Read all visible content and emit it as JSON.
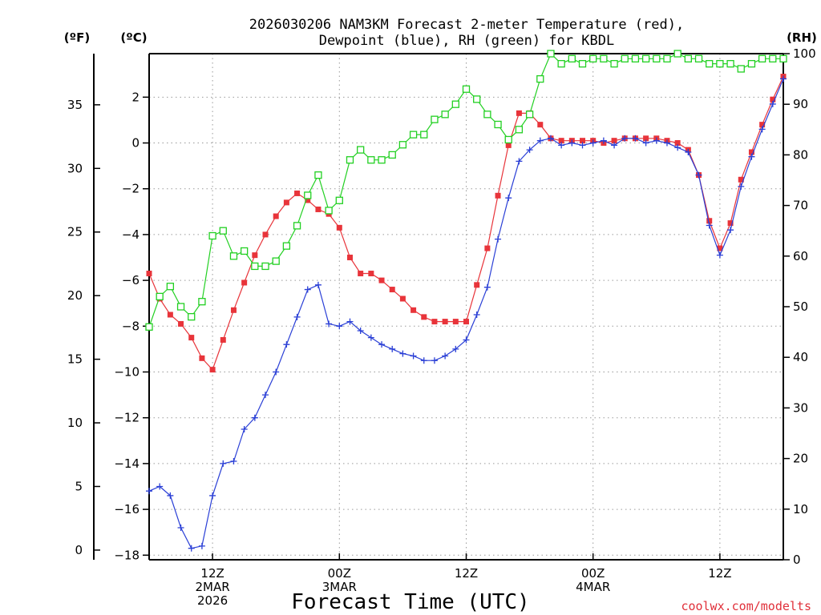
{
  "title_line1": "2026030206 NAM3KM Forecast 2-meter Temperature (red),",
  "title_line2": "Dewpoint (blue), RH (green) for KBDL",
  "units": {
    "fahrenheit": "(ºF)",
    "celsius": "(ºC)",
    "rh": "(RH)"
  },
  "xlabel": "Forecast Time (UTC)",
  "credit": "coolwx.com/modelts",
  "colors": {
    "temp": "#e8343a",
    "dewpoint": "#2a3fd6",
    "rh": "#22d022",
    "credit": "#e0303a",
    "grid": "#9a9a9a"
  },
  "chart_data": {
    "type": "line",
    "x_unit": "forecast hour from 2026-03-02 06Z",
    "x": [
      0,
      1,
      2,
      3,
      4,
      5,
      6,
      7,
      8,
      9,
      10,
      11,
      12,
      13,
      14,
      15,
      16,
      17,
      18,
      19,
      20,
      21,
      22,
      23,
      24,
      25,
      26,
      27,
      28,
      29,
      30,
      31,
      32,
      33,
      34,
      35,
      36,
      37,
      38,
      39,
      40,
      41,
      42,
      43,
      44,
      45,
      46,
      47,
      48,
      49,
      50,
      51,
      52,
      53,
      54,
      55,
      56,
      57,
      58,
      59,
      60
    ],
    "xlim": [
      0,
      60
    ],
    "x_ticks": [
      {
        "x": 6,
        "lines": [
          "12Z",
          "2MAR",
          "2026"
        ]
      },
      {
        "x": 18,
        "lines": [
          "00Z",
          "3MAR"
        ]
      },
      {
        "x": 30,
        "lines": [
          "12Z"
        ]
      },
      {
        "x": 42,
        "lines": [
          "00Z",
          "4MAR"
        ]
      },
      {
        "x": 54,
        "lines": [
          "12Z"
        ]
      }
    ],
    "y_left_celsius": {
      "range": [
        -18.2,
        3.9
      ],
      "ticks": [
        2,
        0,
        -2,
        -4,
        -6,
        -8,
        -10,
        -12,
        -14,
        -16,
        -18
      ]
    },
    "y_left_fahrenheit": {
      "ticks": [
        35,
        30,
        25,
        20,
        15,
        10,
        5,
        0
      ]
    },
    "y_right_rh": {
      "range": [
        0,
        100
      ],
      "ticks": [
        0,
        10,
        20,
        30,
        40,
        50,
        60,
        70,
        80,
        90,
        100
      ]
    },
    "series": [
      {
        "name": "2-meter Temperature",
        "axis": "celsius",
        "color": "red",
        "marker": "filled-square",
        "values": [
          -5.7,
          -6.8,
          -7.5,
          -7.9,
          -8.5,
          -9.4,
          -9.9,
          -8.6,
          -7.3,
          -6.1,
          -4.9,
          -4.0,
          -3.2,
          -2.6,
          -2.2,
          -2.5,
          -2.9,
          -3.1,
          -3.7,
          -5.0,
          -5.7,
          -5.7,
          -6.0,
          -6.4,
          -6.8,
          -7.3,
          -7.6,
          -7.8,
          -7.8,
          -7.8,
          -7.8,
          -6.2,
          -4.6,
          -2.3,
          -0.1,
          1.3,
          1.3,
          0.8,
          0.2,
          0.1,
          0.1,
          0.1,
          0.1,
          0.0,
          0.1,
          0.2,
          0.2,
          0.2,
          0.2,
          0.1,
          0.0,
          -0.3,
          -1.4,
          -3.4,
          -4.6,
          -3.5,
          -1.6,
          -0.4,
          0.8,
          1.9,
          2.9
        ]
      },
      {
        "name": "Dewpoint",
        "axis": "celsius",
        "color": "blue",
        "marker": "plus",
        "values": [
          -15.2,
          -15.0,
          -15.4,
          -16.8,
          -17.7,
          -17.6,
          -15.4,
          -14.0,
          -13.9,
          -12.5,
          -12.0,
          -11.0,
          -10.0,
          -8.8,
          -7.6,
          -6.4,
          -6.2,
          -7.9,
          -8.0,
          -7.8,
          -8.2,
          -8.5,
          -8.8,
          -9.0,
          -9.2,
          -9.3,
          -9.5,
          -9.5,
          -9.3,
          -9.0,
          -8.6,
          -7.5,
          -6.3,
          -4.2,
          -2.4,
          -0.8,
          -0.3,
          0.1,
          0.2,
          -0.1,
          0.0,
          -0.1,
          0.0,
          0.1,
          -0.1,
          0.2,
          0.2,
          0.0,
          0.1,
          0.0,
          -0.2,
          -0.4,
          -1.4,
          -3.6,
          -4.9,
          -3.8,
          -1.9,
          -0.6,
          0.6,
          1.7,
          2.8
        ]
      },
      {
        "name": "RH",
        "axis": "rh",
        "color": "green",
        "marker": "open-square",
        "values": [
          46,
          52,
          54,
          50,
          48,
          51,
          64,
          65,
          60,
          61,
          58,
          58,
          59,
          62,
          66,
          72,
          76,
          69,
          71,
          79,
          81,
          79,
          79,
          80,
          82,
          84,
          84,
          87,
          88,
          90,
          93,
          91,
          88,
          86,
          83,
          85,
          88,
          95,
          100,
          98,
          99,
          98,
          99,
          99,
          98,
          99,
          99,
          99,
          99,
          99,
          100,
          99,
          99,
          98,
          98,
          98,
          97,
          98,
          99,
          99,
          99
        ]
      }
    ]
  }
}
